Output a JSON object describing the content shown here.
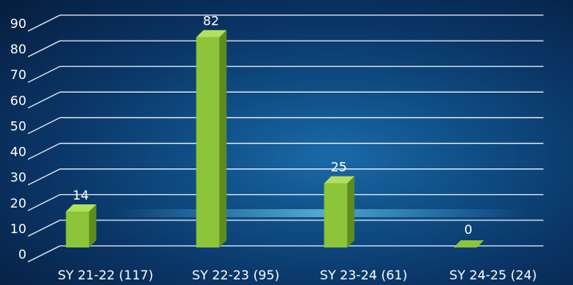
{
  "chart_data": {
    "type": "bar",
    "categories": [
      "SY 21-22 (117)",
      "SY 22-23 (95)",
      "SY 23-24 (61)",
      "SY 24-25 (24)"
    ],
    "values": [
      14,
      82,
      25,
      0
    ],
    "ylim": [
      0,
      90
    ],
    "yticks": [
      0,
      10,
      20,
      30,
      40,
      50,
      60,
      70,
      80,
      90
    ],
    "grid": true,
    "legend": "none",
    "colors": {
      "bar_front": "#8cc43a",
      "bar_side": "#5e8c1f",
      "bar_top": "#b3e05c",
      "grid": "#ffffff",
      "text": "#ffffff"
    }
  }
}
